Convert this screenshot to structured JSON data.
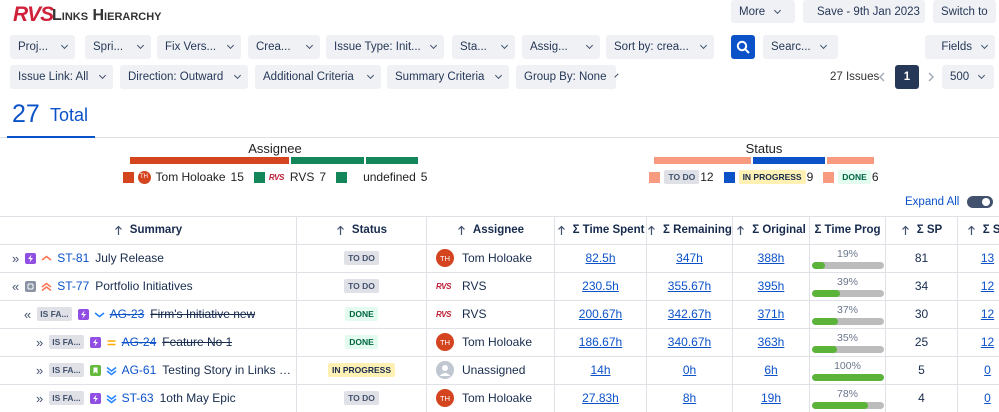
{
  "header": {
    "logo": "RVS",
    "title": "Links Hierarchy",
    "more": "More",
    "save": "Save - 9th Jan 2023",
    "switch": "Switch to"
  },
  "filters": [
    "Proj...",
    "Spri...",
    "Fix Vers...",
    "Crea...",
    "Issue Type: Init...",
    "Sta...",
    "Assig...",
    "Sort by: crea..."
  ],
  "search": "Searc...",
  "fields": "Fields",
  "filters2": [
    "Issue Link: All",
    "Direction: Outward",
    "Additional Criteria",
    "Summary Criteria",
    "Group By: None"
  ],
  "pagination": {
    "count": "27 Issues",
    "page": "1",
    "page_size": "500"
  },
  "total": {
    "count": "27",
    "label": "Total"
  },
  "assignee_summary": {
    "title": "Assignee",
    "items": [
      {
        "name": "Tom Holoake",
        "initials": "TH",
        "value": 15,
        "color": "#d4441f",
        "avatar": "initials"
      },
      {
        "name": "RVS",
        "value": 7,
        "color": "#13875a",
        "avatar": "logo"
      },
      {
        "name": "undefined",
        "value": 5,
        "color": "#13875a"
      }
    ]
  },
  "status_summary": {
    "title": "Status",
    "items": [
      {
        "name": "TO DO",
        "value": 12,
        "color": "#f79a7f"
      },
      {
        "name": "IN PROGRESS",
        "value": 9,
        "color": "#0b52c9"
      },
      {
        "name": "DONE",
        "value": 6,
        "color": "#f79a7f"
      }
    ]
  },
  "expand_all": "Expand All",
  "table": {
    "columns": [
      {
        "title": "Summary",
        "sortable": true
      },
      {
        "title": "Status",
        "sortable": true
      },
      {
        "title": "Assignee",
        "sortable": true
      },
      {
        "title": "Σ Time Spent",
        "sortable": true
      },
      {
        "title": "Σ Remaining",
        "sortable": true
      },
      {
        "title": "Σ Original",
        "sortable": true
      },
      {
        "title": "Σ Time Prog",
        "sortable": false
      },
      {
        "title": "Σ SP",
        "sortable": true
      },
      {
        "title": "Σ SP",
        "sortable": true
      }
    ],
    "rows": [
      {
        "level": 0,
        "toggle": "»",
        "icon": "epic",
        "priority": "medium-high",
        "key": "ST-81",
        "summary": "July Release",
        "done": false,
        "status": "TO DO",
        "assignee": "Tom Holoake",
        "initials": "TH",
        "time_spent": "82.5h",
        "remaining": "347h",
        "original": "388h",
        "progress": 19,
        "progress_label": "19%",
        "sp": "81",
        "sp2": "13"
      },
      {
        "level": 0,
        "toggle": "«",
        "icon": "initiative",
        "priority": "high",
        "key": "ST-77",
        "summary": "Portfolio Initiatives",
        "done": false,
        "status": "TO DO",
        "assignee": "RVS",
        "avatar": "logo",
        "time_spent": "230.5h",
        "remaining": "355.67h",
        "original": "395h",
        "progress": 39,
        "progress_label": "39%",
        "sp": "34",
        "sp2": "12"
      },
      {
        "level": 1,
        "toggle": "«",
        "link_type": "IS FA...",
        "icon": "epic",
        "priority": "low",
        "key": "AG-23",
        "summary": "Firm's Initiative new",
        "done": true,
        "status": "DONE",
        "assignee": "RVS",
        "avatar": "logo",
        "time_spent": "200.67h",
        "remaining": "342.67h",
        "original": "371h",
        "progress": 37,
        "progress_label": "37%",
        "sp": "30",
        "sp2": "12"
      },
      {
        "level": 2,
        "toggle": "»",
        "link_type": "IS FA...",
        "icon": "epic",
        "priority": "medium",
        "key": "AG-24",
        "summary": "Feature No 1",
        "done": true,
        "status": "DONE",
        "assignee": "Tom Holoake",
        "initials": "TH",
        "time_spent": "186.67h",
        "remaining": "340.67h",
        "original": "363h",
        "progress": 35,
        "progress_label": "35%",
        "sp": "25",
        "sp2": "12"
      },
      {
        "level": 2,
        "toggle": "»",
        "link_type": "IS FA...",
        "icon": "story",
        "priority": "lowest",
        "key": "AG-61",
        "summary": "Testing Story in Links Hierar...",
        "done": false,
        "status": "IN PROGRESS",
        "assignee": "Unassigned",
        "avatar": "none",
        "time_spent": "14h",
        "remaining": "0h",
        "original": "6h",
        "progress": 100,
        "progress_label": "100%",
        "sp": "5",
        "sp2": "0"
      },
      {
        "level": 2,
        "toggle": "»",
        "link_type": "IS FA...",
        "icon": "epic",
        "priority": "lowest",
        "key": "ST-63",
        "summary": "1oth May Epic",
        "done": false,
        "status": "TO DO",
        "assignee": "Tom Holoake",
        "initials": "TH",
        "time_spent": "27.83h",
        "remaining": "8h",
        "original": "19h",
        "progress": 78,
        "progress_label": "78%",
        "sp": "4",
        "sp2": "0"
      }
    ]
  }
}
